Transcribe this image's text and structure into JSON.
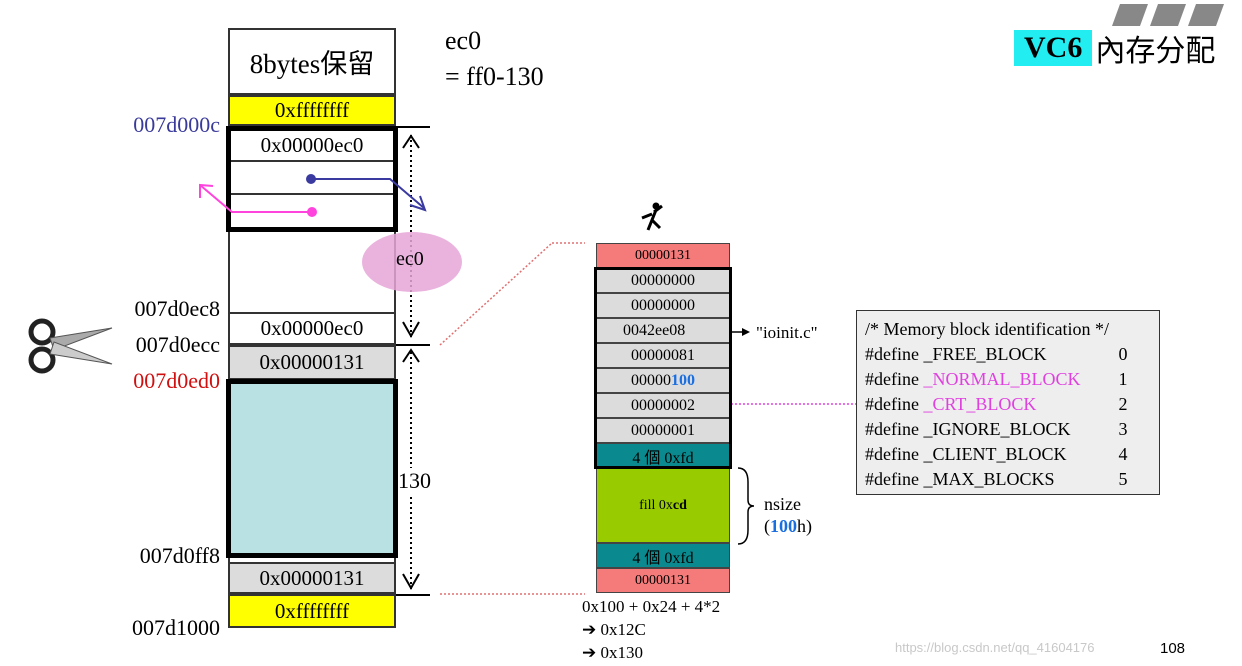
{
  "title": {
    "prefix": "VC6",
    "suffix": "內存分配"
  },
  "note": {
    "line1": "ec0",
    "line2": "= ff0-130"
  },
  "left_block": {
    "reserved": "8bytes保留",
    "top_sentinel": "0xffffffff",
    "head_size": "0x00000ec0",
    "tail_size": "0x00000ec0",
    "block_head": "0x00000131",
    "block_tail": "0x00000131",
    "bottom_sentinel": "0xffffffff",
    "blob_label": "ec0",
    "span_label": "130"
  },
  "addresses": {
    "a0": "007d000c",
    "a1": "007d0ec8",
    "a2": "007d0ecc",
    "a3": "007d0ed0",
    "a4": "007d0ff8",
    "a5": "007d1000"
  },
  "right_block": {
    "rows": [
      "00000131",
      "00000000",
      "00000000",
      "0042ee08",
      "00000081",
      "00000",
      "00000002",
      "00000001",
      "4 個 0xfd"
    ],
    "size_highlight": "100",
    "fill_prefix": "fill 0x",
    "fill_bold": "cd",
    "fd_bottom": "4 個 0xfd",
    "tail": "00000131",
    "file_ref": "\"ioinit.c\"",
    "nsize": "nsize",
    "nsize_paren_open": "(",
    "nsize_val": "100",
    "nsize_paren_close": "h)",
    "calc": [
      "0x100 + 0x24 + 4*2",
      "➔ 0x12C",
      "➔ 0x130"
    ]
  },
  "defines": {
    "comment": "/* Memory block identification */",
    "items": [
      {
        "prefix": "#define ",
        "name": "_FREE_BLOCK",
        "value": "0",
        "highlight": false
      },
      {
        "prefix": "#define ",
        "name": "_NORMAL_BLOCK",
        "value": "1",
        "highlight": true
      },
      {
        "prefix": "#define ",
        "name": "_CRT_BLOCK",
        "value": "2",
        "highlight": true
      },
      {
        "prefix": "#define ",
        "name": "_IGNORE_BLOCK",
        "value": "3",
        "highlight": false
      },
      {
        "prefix": "#define ",
        "name": "_CLIENT_BLOCK",
        "value": "4",
        "highlight": false
      },
      {
        "prefix": "#define ",
        "name": "_MAX_BLOCKS",
        "value": "5",
        "highlight": false
      }
    ]
  },
  "page_number": "108",
  "watermark": "https://blog.csdn.net/qq_41604176",
  "colors": {
    "yellow": "#ffff00",
    "gray": "#dcdcdc",
    "lightblue": "#b9e0e3",
    "red": "#f57a7a",
    "teal": "#0a8a8e",
    "green": "#99cc00",
    "cyan": "#22eef2",
    "blue": "#1a6fe0",
    "magenta": "#e040e0",
    "navy": "#3a3a9a"
  }
}
